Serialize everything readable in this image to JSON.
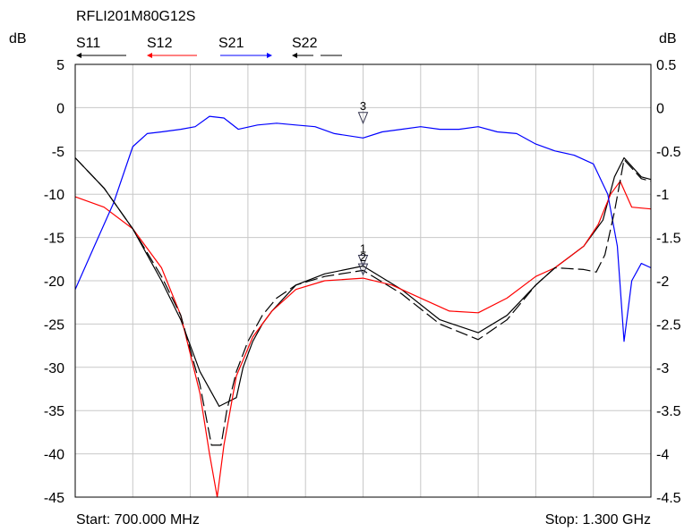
{
  "chart_data": {
    "type": "line",
    "title": "RFLI201M80G12S",
    "ylabel_left": "dB",
    "ylabel_right": "dB",
    "start_label": "Start: 700.000 MHz",
    "stop_label": "Stop: 1.300 GHz",
    "x_unit": "MHz",
    "xlim": [
      700,
      1300
    ],
    "x_grid_divisions": 10,
    "ylim_left": [
      -45,
      5
    ],
    "ylim_right": [
      -4.5,
      0.5
    ],
    "yticks_left": [
      "5",
      "0",
      "-5",
      "-10",
      "-15",
      "-20",
      "-25",
      "-30",
      "-35",
      "-40",
      "-45"
    ],
    "yticks_right": [
      "0.5",
      "0",
      "-0.5",
      "-1",
      "-1.5",
      "-2",
      "-2.5",
      "-3",
      "-3.5",
      "-4",
      "-4.5"
    ],
    "grid": true,
    "legend": [
      {
        "name": "S11",
        "color": "#000000",
        "style": "solid"
      },
      {
        "name": "S12",
        "color": "#ff0000",
        "style": "solid"
      },
      {
        "name": "S21",
        "color": "#0000ff",
        "style": "solid"
      },
      {
        "name": "S22",
        "color": "#000000",
        "style": "dashed"
      }
    ],
    "series": [
      {
        "name": "S11",
        "axis": "left",
        "color": "#000000",
        "dash": false,
        "x": [
          700,
          730,
          760,
          790,
          810,
          830,
          850,
          868,
          875,
          885,
          895,
          905,
          930,
          960,
          1000,
          1040,
          1080,
          1120,
          1150,
          1180,
          1200,
          1230,
          1250,
          1262,
          1272,
          1290,
          1300
        ],
        "y": [
          -5.8,
          -9.3,
          -14.0,
          -20.0,
          -24.5,
          -30.5,
          -34.5,
          -33.5,
          -30.0,
          -27.0,
          -25.0,
          -23.5,
          -20.5,
          -19.2,
          -18.3,
          -21.0,
          -24.5,
          -26.0,
          -24.0,
          -20.5,
          -18.5,
          -16.0,
          -13.0,
          -8.0,
          -5.8,
          -8.0,
          -8.3
        ]
      },
      {
        "name": "S12",
        "axis": "left",
        "color": "#ff0000",
        "dash": false,
        "x": [
          700,
          730,
          760,
          790,
          810,
          830,
          840,
          848,
          855,
          868,
          885,
          905,
          930,
          960,
          1000,
          1030,
          1060,
          1090,
          1120,
          1150,
          1180,
          1200,
          1230,
          1245,
          1258,
          1268,
          1280,
          1300
        ],
        "y": [
          -10.3,
          -11.5,
          -14.0,
          -18.5,
          -24.0,
          -33.0,
          -40.0,
          -45.0,
          -39.0,
          -31.0,
          -26.5,
          -23.5,
          -21.0,
          -20.0,
          -19.7,
          -20.5,
          -22.0,
          -23.5,
          -23.7,
          -22.0,
          -19.5,
          -18.5,
          -16.0,
          -13.5,
          -10.0,
          -8.5,
          -11.5,
          -11.7
        ]
      },
      {
        "name": "S21",
        "axis": "right",
        "color": "#0000ff",
        "dash": false,
        "x": [
          700,
          720,
          740,
          760,
          775,
          790,
          810,
          825,
          840,
          855,
          870,
          890,
          910,
          930,
          950,
          970,
          1000,
          1020,
          1040,
          1060,
          1080,
          1100,
          1120,
          1140,
          1160,
          1180,
          1200,
          1220,
          1240,
          1255,
          1265,
          1272,
          1280,
          1290,
          1300
        ],
        "y": [
          -2.1,
          -1.6,
          -1.1,
          -0.45,
          -0.3,
          -0.28,
          -0.25,
          -0.22,
          -0.1,
          -0.12,
          -0.25,
          -0.2,
          -0.18,
          -0.2,
          -0.22,
          -0.3,
          -0.35,
          -0.28,
          -0.25,
          -0.22,
          -0.25,
          -0.25,
          -0.22,
          -0.28,
          -0.3,
          -0.42,
          -0.5,
          -0.55,
          -0.65,
          -1.0,
          -1.6,
          -2.7,
          -2.0,
          -1.8,
          -1.85
        ]
      },
      {
        "name": "S22",
        "axis": "left",
        "color": "#000000",
        "dash": true,
        "x": [
          700,
          730,
          760,
          790,
          810,
          830,
          842,
          852,
          858,
          868,
          880,
          895,
          910,
          930,
          960,
          1000,
          1040,
          1080,
          1120,
          1150,
          1180,
          1200,
          1230,
          1243,
          1252,
          1262,
          1272,
          1290,
          1300
        ],
        "y": [
          -5.8,
          -9.3,
          -14.0,
          -19.5,
          -24.0,
          -32.0,
          -39.0,
          -39.0,
          -35.0,
          -30.5,
          -27.0,
          -24.0,
          -22.0,
          -20.5,
          -19.5,
          -18.8,
          -21.5,
          -25.0,
          -26.8,
          -24.5,
          -20.5,
          -18.5,
          -18.7,
          -19.0,
          -17.0,
          -12.0,
          -6.0,
          -8.2,
          -8.5
        ]
      }
    ],
    "markers": [
      {
        "label": "3",
        "x": 1000,
        "y": -0.2,
        "axis": "right"
      },
      {
        "label": "1",
        "x": 1000,
        "y": -18.5,
        "axis": "left"
      },
      {
        "label": "2",
        "x": 1000,
        "y": -19.5,
        "axis": "left"
      }
    ]
  }
}
